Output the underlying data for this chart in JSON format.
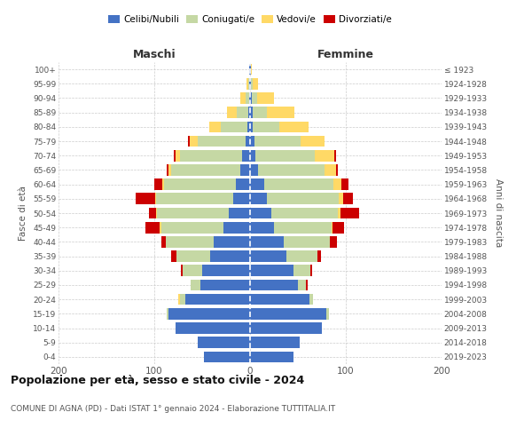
{
  "age_groups": [
    "0-4",
    "5-9",
    "10-14",
    "15-19",
    "20-24",
    "25-29",
    "30-34",
    "35-39",
    "40-44",
    "45-49",
    "50-54",
    "55-59",
    "60-64",
    "65-69",
    "70-74",
    "75-79",
    "80-84",
    "85-89",
    "90-94",
    "95-99",
    "100+"
  ],
  "birth_years": [
    "2019-2023",
    "2014-2018",
    "2009-2013",
    "2004-2008",
    "1999-2003",
    "1994-1998",
    "1989-1993",
    "1984-1988",
    "1979-1983",
    "1974-1978",
    "1969-1973",
    "1964-1968",
    "1959-1963",
    "1954-1958",
    "1949-1953",
    "1944-1948",
    "1939-1943",
    "1934-1938",
    "1929-1933",
    "1924-1928",
    "≤ 1923"
  ],
  "colors": {
    "celibi": "#4472c4",
    "coniugati": "#c5d8a4",
    "vedovi": "#ffd966",
    "divorziati": "#cc0000"
  },
  "maschi": {
    "celibi": [
      48,
      55,
      78,
      85,
      68,
      52,
      50,
      42,
      38,
      28,
      22,
      18,
      15,
      10,
      8,
      5,
      3,
      2,
      1,
      1,
      1
    ],
    "coniugati": [
      0,
      0,
      0,
      2,
      5,
      10,
      20,
      35,
      50,
      65,
      75,
      80,
      75,
      72,
      65,
      50,
      28,
      12,
      4,
      1,
      0
    ],
    "vedovi": [
      0,
      0,
      0,
      0,
      2,
      0,
      0,
      0,
      0,
      1,
      1,
      1,
      2,
      3,
      5,
      8,
      12,
      10,
      5,
      2,
      0
    ],
    "divorziati": [
      0,
      0,
      0,
      0,
      0,
      0,
      2,
      5,
      5,
      15,
      8,
      20,
      8,
      2,
      2,
      2,
      0,
      0,
      0,
      0,
      0
    ]
  },
  "femmine": {
    "celibi": [
      45,
      52,
      75,
      80,
      62,
      50,
      45,
      38,
      35,
      25,
      22,
      18,
      15,
      8,
      6,
      5,
      3,
      3,
      2,
      1,
      1
    ],
    "coniugati": [
      0,
      0,
      0,
      2,
      4,
      8,
      18,
      32,
      48,
      60,
      70,
      75,
      72,
      70,
      62,
      48,
      28,
      15,
      5,
      2,
      0
    ],
    "vedovi": [
      0,
      0,
      0,
      0,
      0,
      0,
      0,
      0,
      0,
      1,
      2,
      4,
      8,
      12,
      20,
      25,
      30,
      28,
      18,
      5,
      1
    ],
    "divorziati": [
      0,
      0,
      0,
      0,
      0,
      2,
      2,
      4,
      8,
      12,
      20,
      10,
      8,
      2,
      2,
      0,
      0,
      0,
      0,
      0,
      0
    ]
  },
  "xlim": 200,
  "title": "Popolazione per età, sesso e stato civile - 2024",
  "subtitle": "COMUNE DI AGNA (PD) - Dati ISTAT 1° gennaio 2024 - Elaborazione TUTTITALIA.IT",
  "xlabel_left": "Maschi",
  "xlabel_right": "Femmine",
  "ylabel_left": "Fasce di età",
  "ylabel_right": "Anni di nascita",
  "legend_labels": [
    "Celibi/Nubili",
    "Coniugati/e",
    "Vedovi/e",
    "Divorziati/e"
  ]
}
